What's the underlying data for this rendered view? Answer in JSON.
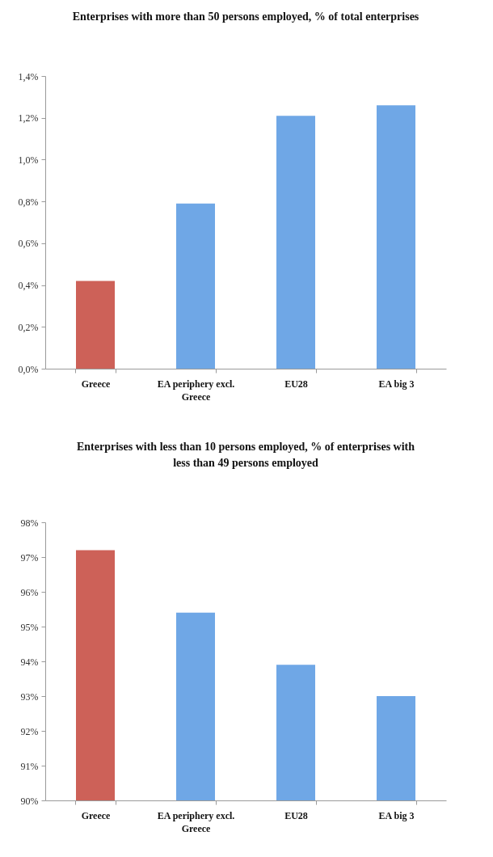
{
  "chart_data": [
    {
      "type": "bar",
      "title": "Enterprises with more than 50 persons employed, % of total enterprises",
      "categories": [
        "Greece",
        "EA periphery excl. Greece",
        "EU28",
        "EA big 3"
      ],
      "values": [
        0.42,
        0.79,
        1.21,
        1.26
      ],
      "colors": [
        "#cd6158",
        "#6fa7e6",
        "#6fa7e6",
        "#6fa7e6"
      ],
      "ylim": [
        0,
        1.4
      ],
      "yticks": [
        {
          "value": 0,
          "label": "0,0%"
        },
        {
          "value": 0.2,
          "label": "0,2%"
        },
        {
          "value": 0.4,
          "label": "0,4%"
        },
        {
          "value": 0.6,
          "label": "0,6%"
        },
        {
          "value": 0.8,
          "label": "0,8%"
        },
        {
          "value": 1.0,
          "label": "1,0%"
        },
        {
          "value": 1.2,
          "label": "1,2%"
        },
        {
          "value": 1.4,
          "label": "1,4%"
        }
      ]
    },
    {
      "type": "bar",
      "title": "Enterprises with less than 10 persons employed, % of enterprises with less than 49 persons employed",
      "categories": [
        "Greece",
        "EA periphery excl. Greece",
        "EU28",
        "EA big 3"
      ],
      "values": [
        97.2,
        95.4,
        93.9,
        93.0
      ],
      "colors": [
        "#cd6158",
        "#6fa7e6",
        "#6fa7e6",
        "#6fa7e6"
      ],
      "ylim": [
        90,
        98
      ],
      "yticks": [
        {
          "value": 90,
          "label": "90%"
        },
        {
          "value": 91,
          "label": "91%"
        },
        {
          "value": 92,
          "label": "92%"
        },
        {
          "value": 93,
          "label": "93%"
        },
        {
          "value": 94,
          "label": "94%"
        },
        {
          "value": 95,
          "label": "95%"
        },
        {
          "value": 96,
          "label": "96%"
        },
        {
          "value": 97,
          "label": "97%"
        },
        {
          "value": 98,
          "label": "98%"
        }
      ]
    }
  ]
}
